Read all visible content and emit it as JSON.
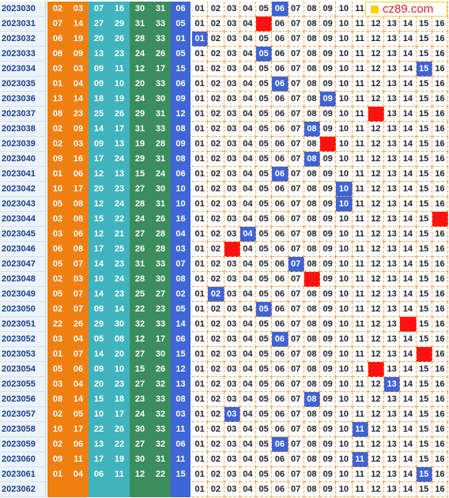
{
  "logo_text": "cz89.com",
  "colors": {
    "red_balls": "#f07f12",
    "cyan_balls": "#3fb4bf",
    "green_balls": "#3b8d5e",
    "blue_ball": "#3f66d6",
    "hit_cell": "#3d63d6",
    "special_cell": "#ff1111"
  },
  "rows": [
    {
      "issue": "2023030",
      "red": [
        "02",
        "03",
        "07",
        "16",
        "30",
        "31"
      ],
      "blue": "06",
      "hit": "06",
      "special": []
    },
    {
      "issue": "2023031",
      "red": [
        "07",
        "14",
        "27",
        "29",
        "31",
        "33"
      ],
      "blue": "05",
      "hit": "",
      "special": [
        "05"
      ]
    },
    {
      "issue": "2023032",
      "red": [
        "06",
        "19",
        "20",
        "26",
        "28",
        "33"
      ],
      "blue": "01",
      "hit": "01",
      "special": []
    },
    {
      "issue": "2023033",
      "red": [
        "08",
        "09",
        "13",
        "23",
        "24",
        "26"
      ],
      "blue": "05",
      "hit": "05",
      "special": []
    },
    {
      "issue": "2023034",
      "red": [
        "02",
        "03",
        "09",
        "11",
        "12",
        "17"
      ],
      "blue": "15",
      "hit": "15",
      "special": []
    },
    {
      "issue": "2023035",
      "red": [
        "01",
        "04",
        "09",
        "10",
        "20",
        "33"
      ],
      "blue": "06",
      "hit": "06",
      "special": []
    },
    {
      "issue": "2023036",
      "red": [
        "13",
        "14",
        "18",
        "19",
        "24",
        "30"
      ],
      "blue": "09",
      "hit": "09",
      "special": []
    },
    {
      "issue": "2023037",
      "red": [
        "08",
        "23",
        "25",
        "26",
        "29",
        "31"
      ],
      "blue": "12",
      "hit": "",
      "special": [
        "12"
      ]
    },
    {
      "issue": "2023038",
      "red": [
        "02",
        "09",
        "14",
        "17",
        "31",
        "33"
      ],
      "blue": "08",
      "hit": "08",
      "special": []
    },
    {
      "issue": "2023039",
      "red": [
        "02",
        "03",
        "09",
        "13",
        "19",
        "28"
      ],
      "blue": "09",
      "hit": "",
      "special": [
        "09"
      ]
    },
    {
      "issue": "2023040",
      "red": [
        "09",
        "16",
        "17",
        "24",
        "29",
        "31"
      ],
      "blue": "08",
      "hit": "08",
      "special": []
    },
    {
      "issue": "2023041",
      "red": [
        "01",
        "06",
        "12",
        "13",
        "15",
        "24"
      ],
      "blue": "06",
      "hit": "06",
      "special": []
    },
    {
      "issue": "2023042",
      "red": [
        "10",
        "17",
        "20",
        "23",
        "27",
        "30"
      ],
      "blue": "10",
      "hit": "10",
      "special": []
    },
    {
      "issue": "2023043",
      "red": [
        "05",
        "08",
        "12",
        "24",
        "28",
        "31"
      ],
      "blue": "10",
      "hit": "10",
      "special": []
    },
    {
      "issue": "2023044",
      "red": [
        "02",
        "08",
        "15",
        "22",
        "24",
        "26"
      ],
      "blue": "16",
      "hit": "",
      "special": [
        "16"
      ]
    },
    {
      "issue": "2023045",
      "red": [
        "03",
        "06",
        "12",
        "21",
        "27",
        "28"
      ],
      "blue": "04",
      "hit": "04",
      "special": []
    },
    {
      "issue": "2023046",
      "red": [
        "06",
        "08",
        "17",
        "25",
        "26",
        "28"
      ],
      "blue": "03",
      "hit": "",
      "special": [
        "03"
      ]
    },
    {
      "issue": "2023047",
      "red": [
        "05",
        "07",
        "14",
        "23",
        "31",
        "33"
      ],
      "blue": "07",
      "hit": "07",
      "special": []
    },
    {
      "issue": "2023048",
      "red": [
        "02",
        "03",
        "10",
        "24",
        "28",
        "30"
      ],
      "blue": "08",
      "hit": "",
      "special": [
        "08"
      ]
    },
    {
      "issue": "2023049",
      "red": [
        "05",
        "07",
        "14",
        "23",
        "25",
        "27"
      ],
      "blue": "02",
      "hit": "02",
      "special": []
    },
    {
      "issue": "2023050",
      "red": [
        "02",
        "07",
        "09",
        "14",
        "22",
        "23"
      ],
      "blue": "05",
      "hit": "05",
      "special": []
    },
    {
      "issue": "2023051",
      "red": [
        "22",
        "26",
        "29",
        "30",
        "32",
        "33"
      ],
      "blue": "14",
      "hit": "",
      "special": [
        "14"
      ]
    },
    {
      "issue": "2023052",
      "red": [
        "03",
        "04",
        "05",
        "08",
        "12",
        "17"
      ],
      "blue": "06",
      "hit": "06",
      "special": []
    },
    {
      "issue": "2023053",
      "red": [
        "01",
        "07",
        "14",
        "20",
        "27",
        "30"
      ],
      "blue": "15",
      "hit": "",
      "special": [
        "15"
      ]
    },
    {
      "issue": "2023054",
      "red": [
        "05",
        "06",
        "09",
        "10",
        "15",
        "26"
      ],
      "blue": "12",
      "hit": "",
      "special": [
        "12"
      ]
    },
    {
      "issue": "2023055",
      "red": [
        "03",
        "04",
        "20",
        "23",
        "27",
        "32"
      ],
      "blue": "13",
      "hit": "13",
      "special": []
    },
    {
      "issue": "2023056",
      "red": [
        "08",
        "14",
        "15",
        "18",
        "23",
        "33"
      ],
      "blue": "08",
      "hit": "08",
      "special": []
    },
    {
      "issue": "2023057",
      "red": [
        "02",
        "05",
        "10",
        "17",
        "24",
        "32"
      ],
      "blue": "03",
      "hit": "03",
      "special": []
    },
    {
      "issue": "2023058",
      "red": [
        "10",
        "17",
        "22",
        "26",
        "30",
        "33"
      ],
      "blue": "11",
      "hit": "11",
      "special": []
    },
    {
      "issue": "2023059",
      "red": [
        "02",
        "06",
        "13",
        "22",
        "27",
        "32"
      ],
      "blue": "06",
      "hit": "06",
      "special": []
    },
    {
      "issue": "2023060",
      "red": [
        "09",
        "11",
        "17",
        "19",
        "30",
        "31"
      ],
      "blue": "11",
      "hit": "11",
      "special": []
    },
    {
      "issue": "2023061",
      "red": [
        "01",
        "04",
        "06",
        "11",
        "12",
        "22"
      ],
      "blue": "15",
      "hit": "15",
      "special": []
    },
    {
      "issue": "2023062",
      "red": [
        "",
        "",
        "",
        "",
        "",
        ""
      ],
      "blue": "",
      "hit": "",
      "special": []
    }
  ]
}
